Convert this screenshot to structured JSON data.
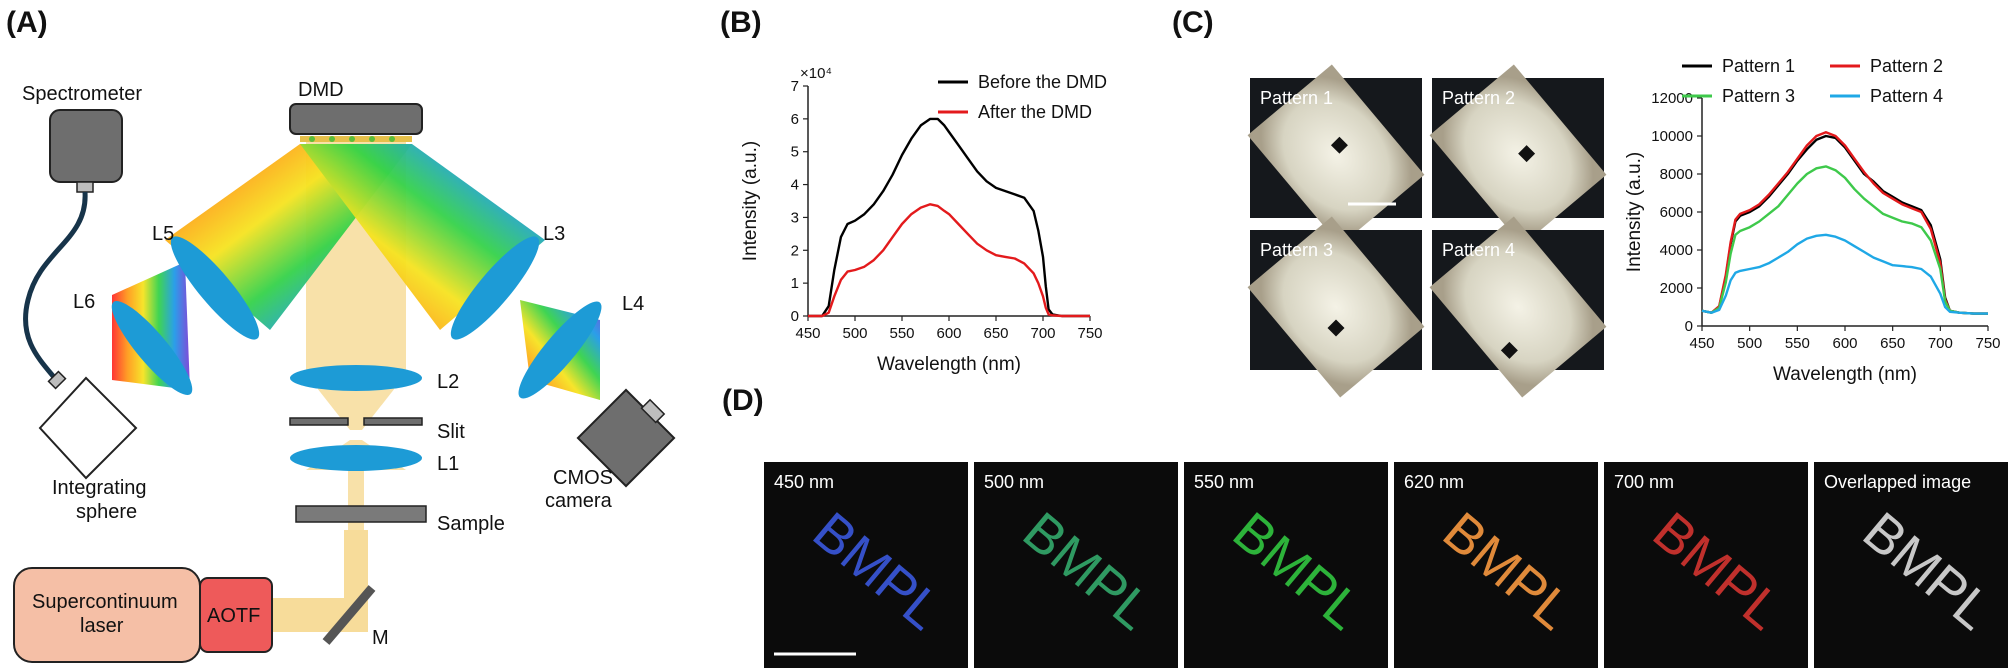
{
  "panels": {
    "a": "(A)",
    "b": "(B)",
    "c": "(C)",
    "d": "(D)"
  },
  "setup": {
    "spectrometer": "Spectrometer",
    "dmd": "DMD",
    "l1": "L1",
    "l2": "L2",
    "l3": "L3",
    "l4": "L4",
    "l5": "L5",
    "l6": "L6",
    "slit": "Slit",
    "sample": "Sample",
    "m": "M",
    "cmos_1": "CMOS",
    "cmos_2": "camera",
    "sphere_1": "Integrating",
    "sphere_2": "sphere",
    "laser_1": "Supercontinuum",
    "laser_2": "laser",
    "aotf": "AOTF"
  },
  "colors": {
    "beam": "#f7dc9a",
    "lens": "#1d9bd6",
    "laser_box": "#f5bfa6",
    "aotf_box": "#ee5a5a",
    "device_gray": "#7a7a7a"
  },
  "chart_data": [
    {
      "id": "B",
      "type": "line",
      "title": "",
      "xlabel": "Wavelength (nm)",
      "ylabel": "Intensity (a.u.)",
      "y_exponent": "×10⁴",
      "xlim": [
        450,
        750
      ],
      "ylim": [
        0,
        7
      ],
      "xticks": [
        "450",
        "500",
        "550",
        "600",
        "650",
        "700",
        "750"
      ],
      "yticks": [
        "0",
        "1",
        "2",
        "3",
        "4",
        "5",
        "6",
        "7"
      ],
      "x": [
        450,
        465,
        472,
        478,
        485,
        492,
        500,
        510,
        520,
        530,
        540,
        550,
        560,
        570,
        580,
        588,
        595,
        600,
        610,
        620,
        630,
        640,
        650,
        660,
        670,
        680,
        690,
        695,
        700,
        703,
        706,
        710,
        720,
        735,
        750
      ],
      "series": [
        {
          "name": "Before the DMD",
          "color": "#000000",
          "values": [
            0,
            0,
            0.3,
            1.4,
            2.4,
            2.8,
            2.9,
            3.1,
            3.4,
            3.8,
            4.3,
            4.9,
            5.4,
            5.8,
            6.0,
            6.0,
            5.8,
            5.6,
            5.2,
            4.8,
            4.4,
            4.1,
            3.9,
            3.8,
            3.7,
            3.6,
            3.2,
            2.6,
            1.8,
            0.9,
            0.2,
            0.05,
            0,
            0,
            0
          ]
        },
        {
          "name": "After the DMD",
          "color": "#e31a1c",
          "values": [
            0,
            0,
            0.1,
            0.6,
            1.1,
            1.35,
            1.4,
            1.5,
            1.7,
            2.0,
            2.4,
            2.8,
            3.1,
            3.3,
            3.4,
            3.35,
            3.2,
            3.1,
            2.8,
            2.5,
            2.2,
            2.0,
            1.85,
            1.8,
            1.75,
            1.6,
            1.3,
            1.0,
            0.6,
            0.25,
            0.05,
            0.02,
            0,
            0,
            0
          ]
        }
      ],
      "legend": "top-right"
    },
    {
      "id": "C-spectra",
      "type": "line",
      "title": "",
      "xlabel": "Wavelength (nm)",
      "ylabel": "Intensity (a.u.)",
      "xlim": [
        450,
        750
      ],
      "ylim": [
        0,
        12000
      ],
      "xticks": [
        "450",
        "500",
        "550",
        "600",
        "650",
        "700",
        "750"
      ],
      "yticks": [
        "0",
        "2000",
        "4000",
        "6000",
        "8000",
        "10000",
        "12000"
      ],
      "x": [
        450,
        460,
        468,
        475,
        480,
        485,
        490,
        500,
        510,
        520,
        530,
        540,
        550,
        560,
        570,
        580,
        590,
        600,
        610,
        620,
        630,
        640,
        650,
        660,
        670,
        680,
        690,
        700,
        705,
        710,
        720,
        735,
        750
      ],
      "series": [
        {
          "name": "Pattern 1",
          "color": "#000000",
          "values": [
            800,
            700,
            1000,
            2600,
            4300,
            5500,
            5800,
            6000,
            6300,
            6800,
            7400,
            8000,
            8700,
            9300,
            9800,
            10000,
            9900,
            9400,
            8700,
            8000,
            7600,
            7100,
            6800,
            6500,
            6300,
            6100,
            5300,
            3500,
            1500,
            800,
            700,
            650,
            650
          ]
        },
        {
          "name": "Pattern 2",
          "color": "#e31a1c",
          "values": [
            800,
            700,
            1050,
            2700,
            4400,
            5600,
            5900,
            6100,
            6400,
            6900,
            7500,
            8100,
            8800,
            9500,
            10000,
            10200,
            10000,
            9500,
            8800,
            8100,
            7500,
            7000,
            6700,
            6400,
            6200,
            6000,
            5100,
            3300,
            1400,
            800,
            700,
            650,
            650
          ]
        },
        {
          "name": "Pattern 3",
          "color": "#3ec94b",
          "values": [
            800,
            700,
            950,
            2300,
            3800,
            4800,
            5000,
            5200,
            5500,
            5900,
            6300,
            6900,
            7500,
            8000,
            8300,
            8400,
            8200,
            7800,
            7200,
            6700,
            6300,
            5900,
            5700,
            5500,
            5400,
            5200,
            4500,
            3000,
            1300,
            800,
            700,
            650,
            650
          ]
        },
        {
          "name": "Pattern 4",
          "color": "#1fa8e6",
          "values": [
            800,
            700,
            850,
            1600,
            2400,
            2800,
            2900,
            3000,
            3100,
            3300,
            3600,
            3900,
            4300,
            4600,
            4750,
            4800,
            4700,
            4500,
            4200,
            3900,
            3600,
            3400,
            3200,
            3150,
            3100,
            3000,
            2600,
            1700,
            1000,
            750,
            700,
            650,
            650
          ]
        }
      ],
      "legend": "top"
    }
  ],
  "patterns": [
    {
      "label": "Pattern 1"
    },
    {
      "label": "Pattern 2"
    },
    {
      "label": "Pattern 3"
    },
    {
      "label": "Pattern 4"
    }
  ],
  "wavelength_images": [
    {
      "label": "450 nm",
      "text": "BMPL",
      "color": "#3550c8"
    },
    {
      "label": "500 nm",
      "text": "BMPL",
      "color": "#2f9a62"
    },
    {
      "label": "550 nm",
      "text": "BMPL",
      "color": "#2db33a"
    },
    {
      "label": "620 nm",
      "text": "BMPL",
      "color": "#e08a3a"
    },
    {
      "label": "700 nm",
      "text": "BMPL",
      "color": "#c0302c"
    },
    {
      "label": "Overlapped image",
      "text": "BMPL",
      "color": "#c8c8c8"
    }
  ]
}
